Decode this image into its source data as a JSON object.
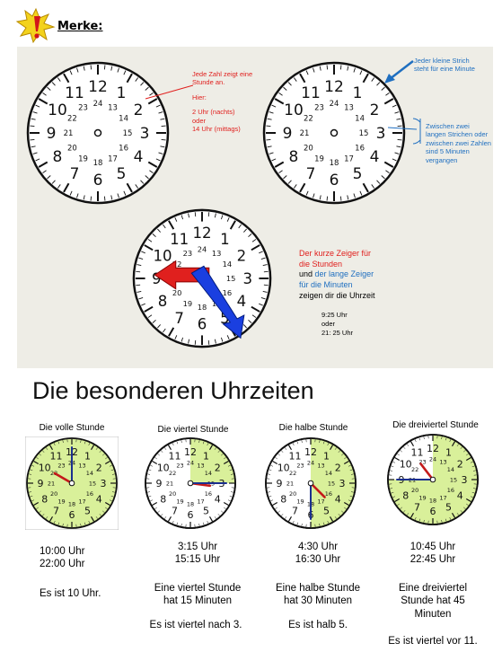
{
  "header": {
    "label": "Merke:"
  },
  "clock1_note": {
    "line1": "Jede Zahl zeigt eine",
    "line2": "Stunde an.",
    "line3": "Hier:",
    "line4": "2 Uhr (nachts)",
    "line5": "oder",
    "line6": "14 Uhr (mittags)"
  },
  "clock2_notes": {
    "top1": "Jeder kleine Strich",
    "top2": "steht für eine Minute",
    "side1": "Zwischen zwei",
    "side2": "langen Strichen oder",
    "side3": "zwischen zwei Zahlen",
    "side4": "sind 5 Minuten",
    "side5": "vergangen"
  },
  "clock3_note": {
    "l1": "Der kurze Zeiger für",
    "l2": "die Stunden",
    "l3a": "und ",
    "l3b": "der lange Zeiger",
    "l4": "für die Minuten",
    "l5": "zeigen dir die Uhrzeit",
    "t1": "9:25 Uhr",
    "t2": "oder",
    "t3": "21: 25 Uhr"
  },
  "clock_numbers": {
    "hours": [
      "12",
      "1",
      "2",
      "3",
      "4",
      "5",
      "6",
      "7",
      "8",
      "9",
      "10",
      "11"
    ],
    "inner": [
      "24",
      "13",
      "14",
      "15",
      "16",
      "17",
      "18",
      "19",
      "20",
      "21",
      "22",
      "23"
    ]
  },
  "section_title": "Die besonderen Uhrzeiten",
  "special_times": [
    {
      "title": "Die volle Stunde",
      "time1": "10:00 Uhr",
      "time2": "22:00 Uhr",
      "desc": "",
      "saying": "Es ist 10 Uhr."
    },
    {
      "title": "Die viertel Stunde",
      "time1": "3:15 Uhr",
      "time2": "15:15 Uhr",
      "desc": "Eine viertel Stunde hat 15 Minuten",
      "saying": "Es ist viertel nach 3."
    },
    {
      "title": "Die halbe Stunde",
      "time1": "4:30 Uhr",
      "time2": "16:30 Uhr",
      "desc": "Eine halbe Stunde hat 30 Minuten",
      "saying": "Es ist halb 5."
    },
    {
      "title": "Die dreiviertel Stunde",
      "time1": "10:45 Uhr",
      "time2": "22:45 Uhr",
      "desc": "Eine dreiviertel Stunde hat 45 Minuten",
      "saying": "Es ist viertel vor 11."
    }
  ],
  "colors": {
    "clock_fill": "#d9f09a",
    "red": "#e0201e",
    "blue": "#1f6fc0",
    "hand_blue": "#1b2f8f"
  }
}
